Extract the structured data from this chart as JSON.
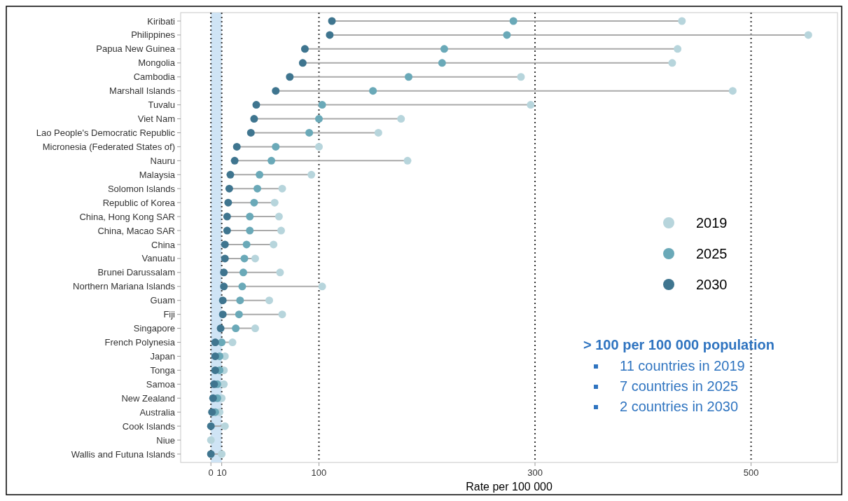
{
  "chart_data": {
    "type": "scatter",
    "orientation": "horizontal",
    "xlabel": "Rate per 100 000",
    "categories": [
      "Kiribati",
      "Philippines",
      "Papua New Guinea",
      "Mongolia",
      "Cambodia",
      "Marshall Islands",
      "Tuvalu",
      "Viet Nam",
      "Lao People's Democratic Republic",
      "Micronesia (Federated States of)",
      "Nauru",
      "Malaysia",
      "Solomon Islands",
      "Republic of Korea",
      "China, Hong Kong SAR",
      "China, Macao SAR",
      "China",
      "Vanuatu",
      "Brunei Darussalam",
      "Northern Mariana Islands",
      "Guam",
      "Fiji",
      "Singapore",
      "French Polynesia",
      "Japan",
      "Tonga",
      "Samoa",
      "New Zealand",
      "Australia",
      "Cook Islands",
      "Niue",
      "Wallis and Futuna Islands"
    ],
    "series": [
      {
        "name": "2019",
        "color": "#b7d5dc",
        "values": [
          436,
          553,
          432,
          427,
          287,
          483,
          296,
          176,
          155,
          100,
          182,
          93,
          66,
          59,
          63,
          65,
          58,
          41,
          64,
          103,
          54,
          66,
          41,
          20,
          13,
          12,
          12,
          10,
          8,
          13,
          0,
          10
        ]
      },
      {
        "name": "2025",
        "color": "#6aa9b8",
        "values": [
          280,
          274,
          216,
          214,
          183,
          150,
          103,
          100,
          91,
          60,
          56,
          45,
          43,
          40,
          36,
          36,
          33,
          31,
          30,
          29,
          27,
          26,
          23,
          10,
          8,
          8,
          6,
          6,
          4,
          null,
          null,
          null
        ]
      },
      {
        "name": "2030",
        "color": "#3f758f",
        "values": [
          112,
          110,
          87,
          85,
          73,
          60,
          42,
          40,
          37,
          24,
          22,
          18,
          17,
          16,
          15,
          15,
          13,
          13,
          12,
          12,
          11,
          11,
          9,
          4,
          4,
          4,
          3,
          2,
          1,
          0,
          null,
          0
        ]
      }
    ],
    "xlim": [
      -28,
      580
    ],
    "xticks": [
      {
        "value": 0,
        "label": "0"
      },
      {
        "value": 10,
        "label": "10"
      },
      {
        "value": 100,
        "label": "100"
      },
      {
        "value": 300,
        "label": "300"
      },
      {
        "value": 500,
        "label": "500"
      }
    ],
    "bands": [
      {
        "axis": "x",
        "from": 0,
        "to": 10,
        "color": "#cfe4f5"
      }
    ],
    "grid": "x",
    "line_style": "dotted",
    "legend": "right",
    "marker": "circle",
    "annotations": [
      "> 100 per 100 000 population",
      "11 countries in 2019",
      "7 countries in 2025",
      "2 countries in 2030"
    ]
  }
}
